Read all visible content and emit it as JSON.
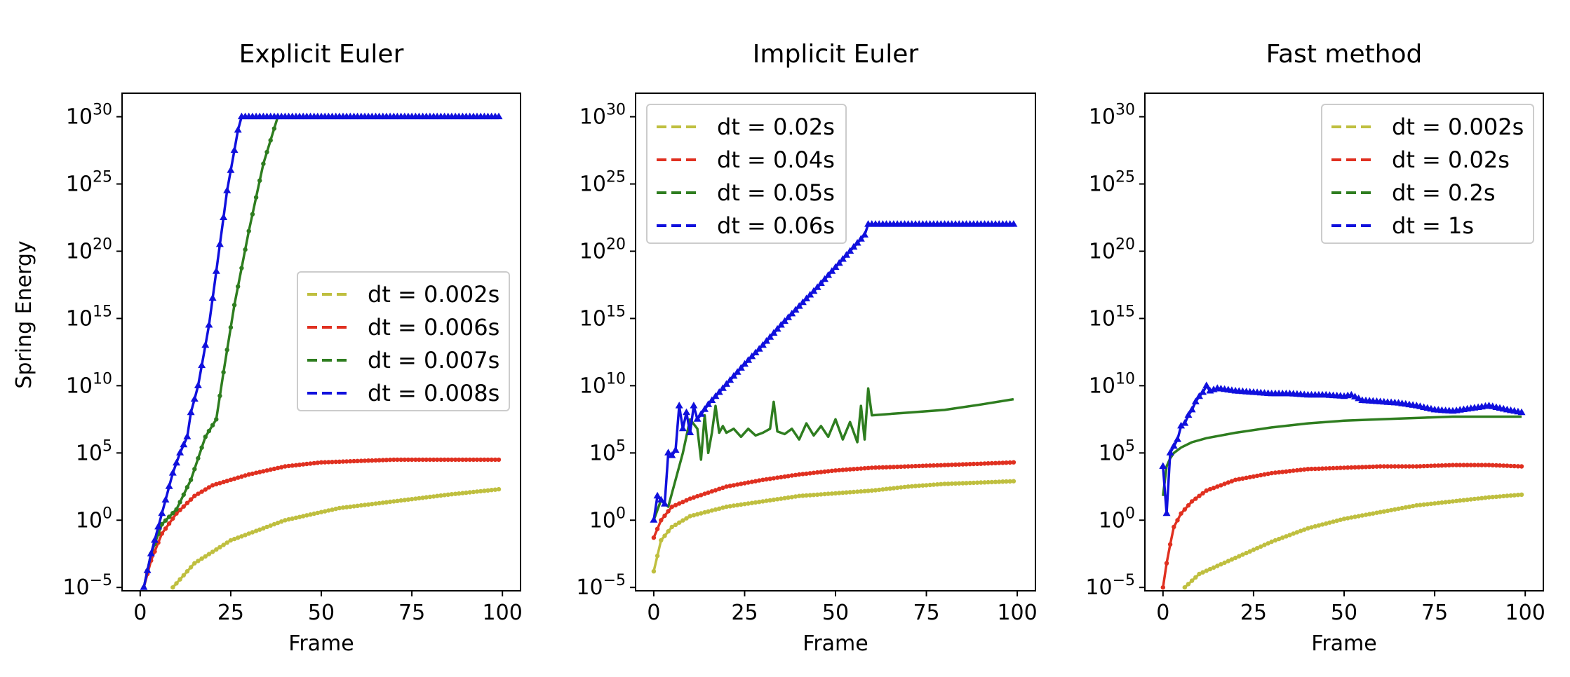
{
  "figure": {
    "ylabel": "Spring Energy"
  },
  "chart_data": [
    {
      "type": "line",
      "title": "Explicit Euler",
      "xlabel": "Frame",
      "ylabel": "Spring Energy",
      "xlim": [
        0,
        100
      ],
      "ylim": [
        1e-05,
        1e+30
      ],
      "yscale": "log",
      "xticks": [
        0,
        25,
        50,
        75,
        100
      ],
      "yticks": [
        {
          "base": "10",
          "exp": "−5",
          "log": -5
        },
        {
          "base": "10",
          "exp": "0",
          "log": 0
        },
        {
          "base": "10",
          "exp": "5",
          "log": 5
        },
        {
          "base": "10",
          "exp": "10",
          "log": 10
        },
        {
          "base": "10",
          "exp": "15",
          "log": 15
        },
        {
          "base": "10",
          "exp": "20",
          "log": 20
        },
        {
          "base": "10",
          "exp": "25",
          "log": 25
        },
        {
          "base": "10",
          "exp": "30",
          "log": 30
        }
      ],
      "legend_position": "center-right",
      "grid": false,
      "series": [
        {
          "name": "dt = 0.002s",
          "color": "#bfbf3f",
          "marker": "dot",
          "x": [
            9,
            15,
            25,
            40,
            55,
            70,
            85,
            99
          ],
          "log10_y": [
            -5,
            -3.2,
            -1.5,
            0.0,
            0.9,
            1.4,
            1.9,
            2.3
          ]
        },
        {
          "name": "dt = 0.006s",
          "color": "#e03020",
          "marker": "dot",
          "x": [
            1,
            3,
            6,
            10,
            15,
            20,
            30,
            40,
            50,
            60,
            70,
            80,
            90,
            99
          ],
          "log10_y": [
            -5,
            -3,
            -1,
            0.5,
            1.8,
            2.6,
            3.4,
            4.0,
            4.3,
            4.4,
            4.5,
            4.5,
            4.5,
            4.5
          ]
        },
        {
          "name": "dt = 0.007s",
          "color": "#2e7d1f",
          "marker": "dot",
          "x": [
            1,
            3,
            6,
            10,
            14,
            18,
            21,
            23,
            26,
            30,
            34,
            38
          ],
          "log10_y": [
            -5,
            -2.5,
            -0.3,
            0.8,
            3,
            6.2,
            7.5,
            11,
            16,
            21.5,
            26.5,
            30
          ]
        },
        {
          "name": "dt = 0.008s",
          "color": "#1010dd",
          "marker": "triangle",
          "x": [
            1,
            3,
            6,
            9,
            11,
            13,
            14,
            15,
            16,
            17,
            18,
            19,
            20,
            21,
            22,
            23,
            24,
            25,
            26,
            27,
            28,
            30,
            40,
            50,
            60,
            70,
            80,
            90,
            99
          ],
          "log10_y": [
            -5,
            -2.5,
            0.5,
            3.5,
            5,
            6.2,
            8,
            9,
            10,
            11.5,
            13,
            14.5,
            16.5,
            18.5,
            20.5,
            22.5,
            24.5,
            26,
            27.5,
            29,
            30,
            30,
            30,
            30,
            30,
            30,
            30,
            30,
            30
          ]
        }
      ]
    },
    {
      "type": "line",
      "title": "Implicit Euler",
      "xlabel": "Frame",
      "ylabel": "",
      "xlim": [
        0,
        100
      ],
      "ylim": [
        1e-05,
        1e+30
      ],
      "yscale": "log",
      "xticks": [
        0,
        25,
        50,
        75,
        100
      ],
      "yticks": [
        {
          "base": "10",
          "exp": "−5",
          "log": -5
        },
        {
          "base": "10",
          "exp": "0",
          "log": 0
        },
        {
          "base": "10",
          "exp": "5",
          "log": 5
        },
        {
          "base": "10",
          "exp": "10",
          "log": 10
        },
        {
          "base": "10",
          "exp": "15",
          "log": 15
        },
        {
          "base": "10",
          "exp": "20",
          "log": 20
        },
        {
          "base": "10",
          "exp": "25",
          "log": 25
        },
        {
          "base": "10",
          "exp": "30",
          "log": 30
        }
      ],
      "legend_position": "upper-left",
      "grid": false,
      "series": [
        {
          "name": "dt = 0.02s",
          "color": "#bfbf3f",
          "marker": "dot",
          "x": [
            0,
            2,
            5,
            10,
            20,
            30,
            40,
            50,
            60,
            70,
            80,
            90,
            99
          ],
          "log10_y": [
            -3.8,
            -1.5,
            -0.5,
            0.3,
            1.0,
            1.4,
            1.8,
            2.0,
            2.2,
            2.5,
            2.7,
            2.8,
            2.9
          ]
        },
        {
          "name": "dt = 0.04s",
          "color": "#e03020",
          "marker": "dot",
          "x": [
            0,
            2,
            5,
            10,
            20,
            30,
            40,
            50,
            60,
            70,
            80,
            90,
            99
          ],
          "log10_y": [
            -1.3,
            0,
            1.0,
            1.6,
            2.5,
            3.0,
            3.4,
            3.7,
            3.9,
            4.0,
            4.1,
            4.2,
            4.3
          ]
        },
        {
          "name": "dt = 0.05s",
          "color": "#2e7d1f",
          "marker": "none",
          "x": [
            0,
            2,
            4,
            6,
            8,
            10,
            12,
            13,
            14,
            15,
            16,
            17,
            18,
            19,
            20,
            22,
            24,
            26,
            28,
            30,
            32,
            33,
            34,
            36,
            38,
            40,
            42,
            44,
            46,
            48,
            50,
            52,
            54,
            56,
            57,
            58,
            59,
            60,
            70,
            80,
            90,
            99
          ],
          "log10_y": [
            0,
            1.5,
            1.0,
            3.0,
            5.0,
            7.5,
            6.8,
            4.5,
            7.8,
            5.0,
            6.5,
            8.5,
            6.5,
            7.0,
            6.5,
            6.8,
            6.2,
            6.8,
            6.3,
            6.5,
            6.8,
            8.8,
            6.6,
            6.4,
            6.8,
            6.0,
            7.2,
            6.3,
            7.0,
            6.2,
            7.5,
            6.0,
            7.3,
            5.8,
            8.5,
            6.0,
            9.8,
            7.8,
            8.0,
            8.2,
            8.6,
            9.0
          ]
        },
        {
          "name": "dt = 0.06s",
          "color": "#1010dd",
          "marker": "triangle",
          "x": [
            0,
            1,
            3,
            4,
            5,
            6,
            7,
            8,
            9,
            10,
            11,
            12,
            15,
            20,
            25,
            30,
            35,
            40,
            45,
            50,
            55,
            58,
            59,
            60,
            70,
            80,
            90,
            99
          ],
          "log10_y": [
            0,
            1.8,
            1.2,
            5.0,
            4.8,
            5.2,
            8.5,
            6.8,
            8.0,
            6.5,
            8.5,
            7.5,
            8.6,
            10.1,
            11.6,
            13.0,
            14.5,
            15.9,
            17.3,
            18.8,
            20.3,
            21.2,
            22.0,
            22.0,
            22.0,
            22.0,
            22.0,
            22.0
          ]
        }
      ]
    },
    {
      "type": "line",
      "title": "Fast method",
      "xlabel": "Frame",
      "ylabel": "",
      "xlim": [
        0,
        100
      ],
      "ylim": [
        1e-05,
        1e+30
      ],
      "yscale": "log",
      "xticks": [
        0,
        25,
        50,
        75,
        100
      ],
      "yticks": [
        {
          "base": "10",
          "exp": "−5",
          "log": -5
        },
        {
          "base": "10",
          "exp": "0",
          "log": 0
        },
        {
          "base": "10",
          "exp": "5",
          "log": 5
        },
        {
          "base": "10",
          "exp": "10",
          "log": 10
        },
        {
          "base": "10",
          "exp": "15",
          "log": 15
        },
        {
          "base": "10",
          "exp": "20",
          "log": 20
        },
        {
          "base": "10",
          "exp": "25",
          "log": 25
        },
        {
          "base": "10",
          "exp": "30",
          "log": 30
        }
      ],
      "legend_position": "upper-right",
      "grid": false,
      "series": [
        {
          "name": "dt = 0.002s",
          "color": "#bfbf3f",
          "marker": "dot",
          "x": [
            6,
            10,
            20,
            30,
            40,
            50,
            60,
            70,
            80,
            90,
            99
          ],
          "log10_y": [
            -5,
            -4,
            -2.8,
            -1.6,
            -0.6,
            0.1,
            0.6,
            1.1,
            1.4,
            1.7,
            1.9
          ]
        },
        {
          "name": "dt = 0.02s",
          "color": "#e03020",
          "marker": "dot",
          "x": [
            0,
            1,
            2,
            3,
            5,
            8,
            12,
            20,
            30,
            40,
            50,
            60,
            70,
            80,
            90,
            99
          ],
          "log10_y": [
            -5,
            -3.2,
            -1.8,
            -0.5,
            0.5,
            1.4,
            2.2,
            3.0,
            3.5,
            3.8,
            3.9,
            4.0,
            4.0,
            4.1,
            4.1,
            4.0
          ]
        },
        {
          "name": "dt = 0.2s",
          "color": "#2e7d1f",
          "marker": "none",
          "x": [
            0,
            1,
            2,
            3,
            5,
            8,
            12,
            20,
            30,
            40,
            50,
            60,
            70,
            80,
            90,
            99
          ],
          "log10_y": [
            1.8,
            4.0,
            4.6,
            5.0,
            5.4,
            5.8,
            6.1,
            6.5,
            6.9,
            7.2,
            7.4,
            7.5,
            7.6,
            7.7,
            7.7,
            7.7
          ]
        },
        {
          "name": "dt = 1s",
          "color": "#1010dd",
          "marker": "triangle",
          "x": [
            0,
            1,
            2,
            3,
            4,
            5,
            6,
            7,
            8,
            9,
            10,
            11,
            12,
            13,
            15,
            20,
            25,
            30,
            35,
            40,
            45,
            50,
            52,
            55,
            60,
            65,
            70,
            75,
            80,
            85,
            90,
            95,
            99
          ],
          "log10_y": [
            4.0,
            0.5,
            5.0,
            5.5,
            6.0,
            7.0,
            7.2,
            7.8,
            8.2,
            8.8,
            9.2,
            9.5,
            10.0,
            9.6,
            9.8,
            9.6,
            9.5,
            9.4,
            9.4,
            9.3,
            9.3,
            9.2,
            9.3,
            8.9,
            8.8,
            8.7,
            8.5,
            8.2,
            8.1,
            8.3,
            8.5,
            8.2,
            8.0
          ]
        }
      ]
    }
  ]
}
